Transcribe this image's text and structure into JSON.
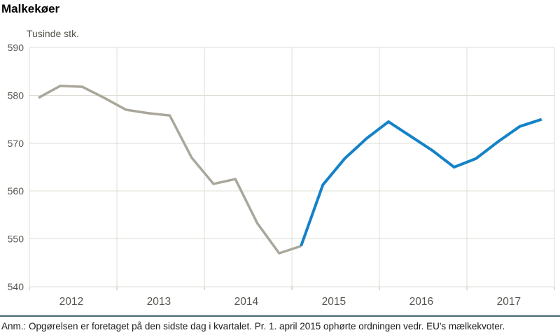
{
  "page": {
    "title": "Malkekøer",
    "footnote": "Anm.: Opgørelsen er foretaget på den sidste dag i kvartalet. Pr. 1. april 2015 ophørte ordningen vedr. EU's mælkekvoter."
  },
  "chart_data": {
    "type": "line",
    "title": "Malkekøer",
    "unit_label": "Tusinde stk.",
    "ylim": [
      540,
      590
    ],
    "y_ticks": [
      590,
      580,
      570,
      560,
      550,
      540
    ],
    "x_tick_labels": [
      "2012",
      "2013",
      "2014",
      "2015",
      "2016",
      "2017"
    ],
    "grid": true,
    "legend": "none",
    "categories": [
      "2012 Q1",
      "2012 Q2",
      "2012 Q3",
      "2012 Q4",
      "2013 Q1",
      "2013 Q2",
      "2013 Q3",
      "2013 Q4",
      "2014 Q1",
      "2014 Q2",
      "2014 Q3",
      "2014 Q4",
      "2015 Q1",
      "2015 Q2",
      "2015 Q3",
      "2015 Q4",
      "2016 Q1",
      "2016 Q2",
      "2016 Q3",
      "2016 Q4",
      "2017 Q1",
      "2017 Q2",
      "2017 Q3",
      "2017 Q4"
    ],
    "series": [
      {
        "name": "before-quota-end-until-2015Q1",
        "color": "#a9a79b",
        "start_index": 0,
        "values": [
          579.5,
          582,
          581.8,
          579.5,
          577,
          576.3,
          575.8,
          567,
          561.5,
          562.5,
          553.3,
          547,
          548.5
        ]
      },
      {
        "name": "after-quota-end-from-2015Q1",
        "color": "#1482c8",
        "start_index": 12,
        "values": [
          548.5,
          561.3,
          566.8,
          571,
          574.5,
          571.5,
          568.5,
          565,
          566.8,
          570.3,
          573.5,
          575
        ]
      }
    ],
    "colors": {
      "grid": "#deded6",
      "tick": "#b9b9b1",
      "axis_label": "#56564e",
      "divider": "#54737e"
    }
  }
}
